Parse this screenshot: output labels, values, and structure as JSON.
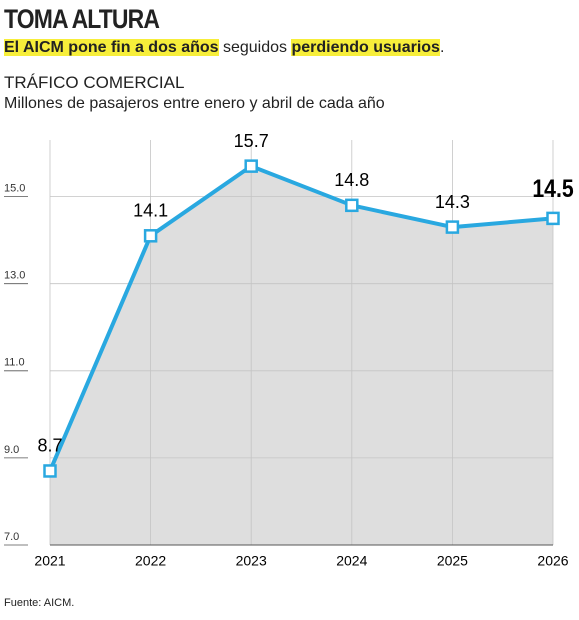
{
  "chart_data": {
    "type": "area-line",
    "title": "TOMA ALTURA",
    "subtitle_parts": [
      {
        "text": "El AICM pone fin a dos años",
        "highlight": true
      },
      {
        "text": " seguidos ",
        "highlight": false
      },
      {
        "text": "perdiendo usuarios",
        "highlight": true
      },
      {
        "text": ".",
        "highlight": false
      }
    ],
    "kicker": "TRÁFICO COMERCIAL",
    "y_label": "Millones de pasajeros entre enero y abril de cada año",
    "categories": [
      "2021",
      "2022",
      "2023",
      "2024",
      "2025",
      "2026"
    ],
    "values": [
      8.7,
      14.1,
      15.7,
      14.8,
      14.3,
      14.5
    ],
    "color": "#29a8e0",
    "area_color": "#dedede",
    "ylim": [
      7,
      16.3
    ],
    "yticks": [
      {
        "value": 7,
        "label": "7.0"
      },
      {
        "value": 9,
        "label": "9.0"
      },
      {
        "value": 11,
        "label": "11.0"
      },
      {
        "value": 13,
        "label": "13.0"
      },
      {
        "value": 15,
        "label": "15.0"
      }
    ],
    "grid": true,
    "source": "Fuente: AICM."
  }
}
